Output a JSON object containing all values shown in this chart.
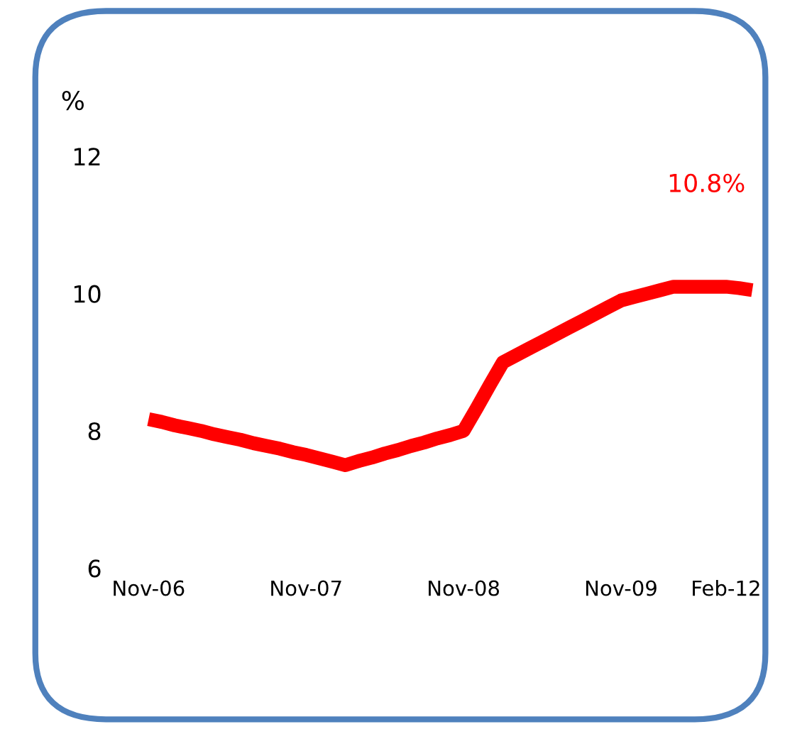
{
  "chart_data": {
    "type": "line",
    "ylabel": "%",
    "categories": [
      "Nov-06",
      null,
      null,
      null,
      null,
      null,
      null,
      null,
      null,
      null,
      null,
      null,
      "Nov-07",
      null,
      null,
      null,
      null,
      null,
      null,
      null,
      null,
      null,
      null,
      null,
      "Nov-08",
      null,
      null,
      null,
      null,
      null,
      null,
      null,
      null,
      null,
      null,
      null,
      "Nov-09",
      null,
      null,
      null,
      null,
      null,
      null,
      null,
      "Feb-12",
      null,
      null
    ],
    "series": [
      {
        "color": "#ff0000",
        "values": [
          8.17,
          8.13,
          8.08,
          8.04,
          8.0,
          7.95,
          7.91,
          7.87,
          7.82,
          7.78,
          7.74,
          7.69,
          7.65,
          7.6,
          7.55,
          7.5,
          7.56,
          7.61,
          7.67,
          7.72,
          7.78,
          7.83,
          7.89,
          7.94,
          8.0,
          8.33,
          8.67,
          9.0,
          9.1,
          9.2,
          9.3,
          9.4,
          9.5,
          9.6,
          9.7,
          9.8,
          9.9,
          9.95,
          10.0,
          10.05,
          10.1,
          10.1,
          10.1,
          10.1,
          10.1,
          10.08,
          10.05
        ]
      }
    ],
    "ylim": [
      6,
      12
    ],
    "yticks": [
      6,
      8,
      10,
      12
    ],
    "annotations": [
      "10.8%"
    ],
    "grid": false,
    "legend": false,
    "marker": "none",
    "line_style": "solid"
  }
}
